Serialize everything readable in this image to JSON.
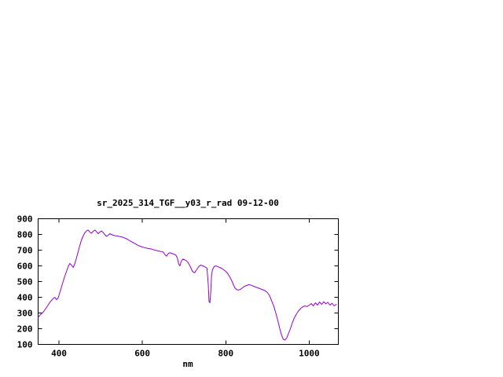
{
  "window": {
    "background": "#ffffff",
    "foreground": "#000000"
  },
  "chart_data": {
    "type": "line",
    "title": "sr_2025_314_TGF__y03_r_rad 09-12-00",
    "xlabel": "nm",
    "ylabel": "",
    "xlim": [
      350,
      1070
    ],
    "ylim": [
      100,
      900
    ],
    "xticks": [
      400,
      600,
      800,
      1000
    ],
    "yticks": [
      100,
      200,
      300,
      400,
      500,
      600,
      700,
      800,
      900
    ],
    "grid": false,
    "legend": "none",
    "line_color": "#9400d3",
    "x": [
      350,
      354,
      358,
      362,
      366,
      370,
      374,
      378,
      382,
      386,
      390,
      394,
      398,
      402,
      406,
      410,
      414,
      418,
      422,
      426,
      430,
      434,
      438,
      442,
      446,
      450,
      454,
      458,
      462,
      466,
      470,
      474,
      478,
      482,
      486,
      490,
      494,
      498,
      502,
      506,
      510,
      514,
      518,
      522,
      526,
      530,
      535,
      540,
      545,
      550,
      555,
      560,
      565,
      570,
      575,
      580,
      585,
      590,
      595,
      600,
      605,
      610,
      615,
      620,
      625,
      630,
      635,
      640,
      645,
      650,
      654,
      658,
      662,
      666,
      670,
      675,
      680,
      684,
      687,
      690,
      693,
      697,
      700,
      705,
      710,
      715,
      720,
      725,
      730,
      735,
      740,
      745,
      750,
      755,
      758,
      760,
      762,
      764,
      766,
      768,
      772,
      776,
      780,
      785,
      790,
      795,
      800,
      805,
      810,
      815,
      818,
      822,
      826,
      830,
      835,
      840,
      845,
      850,
      855,
      860,
      865,
      870,
      875,
      880,
      885,
      890,
      895,
      900,
      905,
      910,
      915,
      920,
      925,
      930,
      935,
      938,
      942,
      946,
      950,
      955,
      960,
      965,
      970,
      975,
      980,
      985,
      990,
      995,
      1000,
      1005,
      1010,
      1015,
      1020,
      1025,
      1030,
      1035,
      1040,
      1045,
      1050,
      1055,
      1060,
      1065
    ],
    "values": [
      270,
      285,
      295,
      305,
      320,
      335,
      350,
      368,
      380,
      392,
      400,
      385,
      395,
      430,
      465,
      500,
      535,
      565,
      595,
      615,
      605,
      590,
      615,
      650,
      690,
      730,
      765,
      790,
      810,
      822,
      828,
      815,
      808,
      820,
      828,
      818,
      805,
      815,
      822,
      812,
      798,
      788,
      795,
      805,
      800,
      795,
      792,
      790,
      787,
      785,
      780,
      775,
      768,
      760,
      752,
      745,
      738,
      730,
      725,
      720,
      716,
      713,
      710,
      708,
      704,
      700,
      697,
      694,
      691,
      688,
      672,
      662,
      678,
      684,
      680,
      675,
      670,
      650,
      612,
      600,
      628,
      643,
      640,
      634,
      620,
      595,
      565,
      556,
      575,
      595,
      605,
      600,
      594,
      585,
      480,
      372,
      365,
      430,
      540,
      575,
      595,
      600,
      596,
      590,
      585,
      575,
      565,
      550,
      528,
      502,
      482,
      460,
      450,
      446,
      450,
      460,
      470,
      475,
      480,
      478,
      472,
      467,
      462,
      457,
      452,
      447,
      440,
      430,
      410,
      378,
      344,
      300,
      250,
      196,
      150,
      132,
      128,
      140,
      166,
      200,
      240,
      272,
      295,
      315,
      330,
      340,
      345,
      341,
      350,
      360,
      345,
      365,
      350,
      370,
      355,
      372,
      358,
      368,
      350,
      362,
      345,
      355
    ]
  }
}
